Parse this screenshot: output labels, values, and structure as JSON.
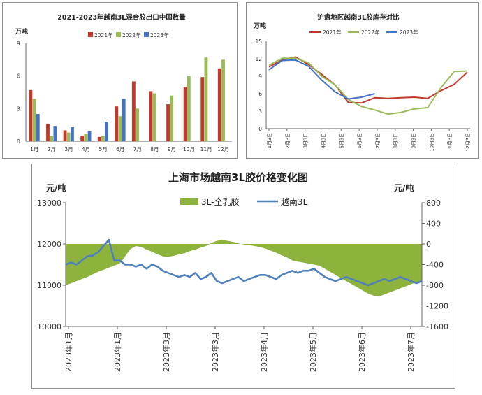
{
  "colors": {
    "y2021": "#c0392b",
    "y2022": "#9bbb59",
    "y2023": "#4472c4",
    "spread": "#8db33d",
    "vn3l": "#4f81bd"
  },
  "chart_data": [
    {
      "type": "bar",
      "title": "2021-2023年越南3L混合胶出口中国数量",
      "ylabel": "万吨",
      "ylim": [
        0,
        9
      ],
      "yticks": [
        "0",
        "3",
        "6",
        "9"
      ],
      "categories": [
        "1月",
        "2月",
        "3月",
        "4月",
        "5月",
        "6月",
        "7月",
        "8月",
        "9月",
        "10月",
        "11月",
        "12月"
      ],
      "series": [
        {
          "name": "2021年",
          "values": [
            4.7,
            1.6,
            1.0,
            0.5,
            0.4,
            3.2,
            5.5,
            4.6,
            3.4,
            5.0,
            5.9,
            6.7
          ]
        },
        {
          "name": "2022年",
          "values": [
            3.9,
            0.5,
            0.8,
            0.7,
            0.5,
            2.3,
            3.0,
            4.4,
            4.2,
            6.0,
            7.7,
            7.5
          ]
        },
        {
          "name": "2023年",
          "values": [
            2.5,
            1.4,
            1.3,
            0.9,
            1.8,
            3.9,
            null,
            null,
            null,
            null,
            null,
            null
          ]
        }
      ],
      "grid": false,
      "legend": "top"
    },
    {
      "type": "line",
      "title": "沪盘地区越南3L胶库存对比",
      "ylabel": "万吨",
      "ylim": [
        0,
        15
      ],
      "yticks": [
        "0",
        "3",
        "6",
        "9",
        "12",
        "15"
      ],
      "xticks": [
        "1月3日",
        "2月3日",
        "3月3日",
        "4月3日",
        "5月3日",
        "6月3日",
        "7月3日",
        "8月3日",
        "9月3日",
        "10月3日",
        "11月3日",
        "12月3日"
      ],
      "series": [
        {
          "name": "2021年",
          "values": [
            10.6,
            11.8,
            12.3,
            11.0,
            9.3,
            7.5,
            4.5,
            4.4,
            5.3,
            5.2,
            5.3,
            5.4,
            5.2,
            6.5,
            7.6,
            9.7
          ]
        },
        {
          "name": "2022年",
          "values": [
            10.9,
            12.1,
            12.1,
            11.3,
            9.0,
            7.5,
            5.0,
            3.8,
            3.2,
            2.5,
            2.8,
            3.4,
            3.6,
            7.0,
            9.8,
            9.9
          ]
        },
        {
          "name": "2023年",
          "values": [
            10.1,
            11.7,
            11.8,
            10.7,
            8.3,
            6.3,
            5.1,
            5.4,
            6.0
          ]
        }
      ],
      "legend": "top"
    },
    {
      "type": "area",
      "title": "上海市场越南3L胶价格变化图",
      "ylabel_left": "元/吨",
      "ylabel_right": "元/吨",
      "ylim_left": [
        10000,
        13000
      ],
      "ylim_right": [
        -1600,
        800
      ],
      "yticks_left": [
        "13000",
        "12000",
        "11000",
        "10000"
      ],
      "yticks_right": [
        "800",
        "400",
        "0",
        "-400",
        "-800",
        "-1200",
        "-1600"
      ],
      "xticks": [
        "2023年1月",
        "2023年1月",
        "2023年3月",
        "2023年3月",
        "2023年4月",
        "2023年5月",
        "2023年6月",
        "2023年7月"
      ],
      "series": [
        {
          "name": "3L-全乳胶",
          "axis": "right",
          "type": "area",
          "values": [
            -800,
            -760,
            -720,
            -680,
            -640,
            -590,
            -540,
            -500,
            -460,
            -420,
            -380,
            -240,
            -100,
            -40,
            -60,
            -110,
            -150,
            -200,
            -240,
            -250,
            -230,
            -200,
            -180,
            -140,
            -110,
            -70,
            -40,
            20,
            60,
            80,
            60,
            40,
            10,
            -10,
            -20,
            -40,
            -60,
            -90,
            -130,
            -170,
            -220,
            -260,
            -320,
            -340,
            -360,
            -380,
            -400,
            -420,
            -480,
            -540,
            -600,
            -660,
            -720,
            -780,
            -840,
            -900,
            -960,
            -1000,
            -1020,
            -980,
            -940,
            -900,
            -860,
            -820,
            -780,
            -740,
            -720
          ]
        },
        {
          "name": "越南3L",
          "axis": "left",
          "type": "line",
          "values": [
            11500,
            11550,
            11500,
            11600,
            11700,
            11720,
            11800,
            11950,
            12100,
            11600,
            11600,
            11500,
            11500,
            11450,
            11500,
            11400,
            11500,
            11450,
            11350,
            11300,
            11250,
            11200,
            11250,
            11200,
            11300,
            11150,
            11200,
            11300,
            11100,
            11050,
            11100,
            11150,
            11200,
            11100,
            11150,
            11200,
            11250,
            11250,
            11200,
            11150,
            11250,
            11300,
            11350,
            11300,
            11350,
            11350,
            11400,
            11300,
            11200,
            11150,
            11100,
            11150,
            11200,
            11150,
            11100,
            11050,
            11000,
            11050,
            11100,
            11150,
            11100,
            11150,
            11200,
            11150,
            11100,
            11050,
            11100
          ]
        }
      ],
      "legend": "top"
    }
  ]
}
